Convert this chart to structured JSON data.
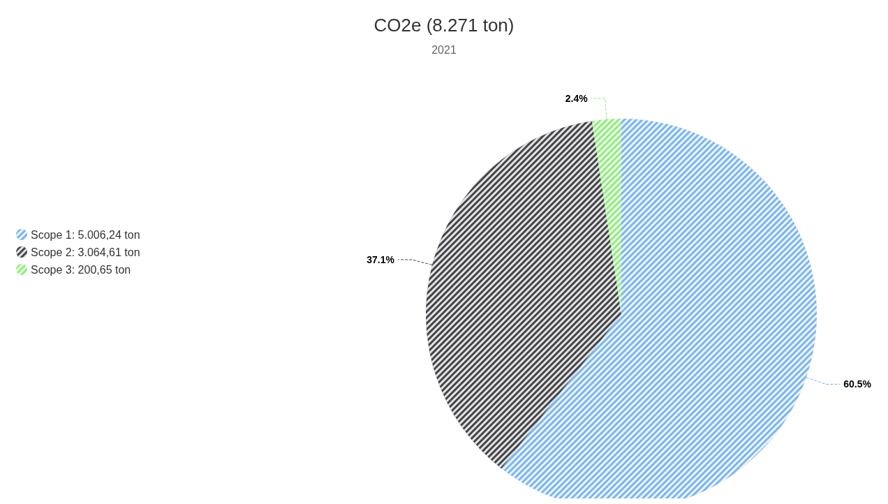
{
  "chart_data": {
    "type": "pie",
    "title": "CO2e (8.271 ton)",
    "subtitle": "2021",
    "categories": [
      "Scope 1: 5.006,24 ton",
      "Scope 2: 3.064,61 ton",
      "Scope 3: 200,65 ton"
    ],
    "values": [
      60.5,
      37.1,
      2.4
    ],
    "colors": [
      "#7cb5ec",
      "#434348",
      "#90ed7d"
    ],
    "value_labels": [
      "60.5%",
      "37.1%",
      "2.4%"
    ],
    "legend": "left"
  }
}
